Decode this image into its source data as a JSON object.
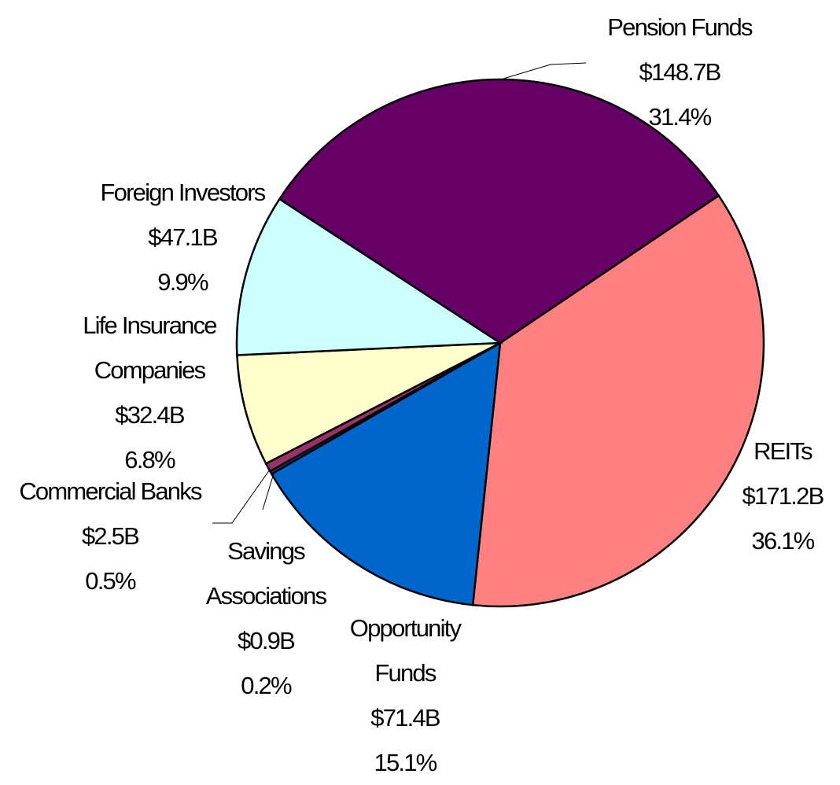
{
  "chart_data": {
    "type": "pie",
    "categories": [
      "REITs",
      "Opportunity Funds",
      "Savings Associations",
      "Commercial Banks",
      "Life Insurance Companies",
      "Foreign Investors",
      "Pension Funds"
    ],
    "values": [
      171.2,
      71.4,
      0.9,
      2.5,
      32.4,
      47.1,
      148.7
    ],
    "value_labels": [
      "$171.2B",
      "$71.4B",
      "$0.9B",
      "$2.5B",
      "$32.4B",
      "$47.1B",
      "$148.7B"
    ],
    "percent_labels": [
      "36.1%",
      "15.1%",
      "0.2%",
      "0.5%",
      "6.8%",
      "9.9%",
      "31.4%"
    ],
    "colors": [
      "#ff8080",
      "#0066cc",
      "#333399",
      "#993366",
      "#ffffcc",
      "#ccffff",
      "#660066"
    ]
  }
}
